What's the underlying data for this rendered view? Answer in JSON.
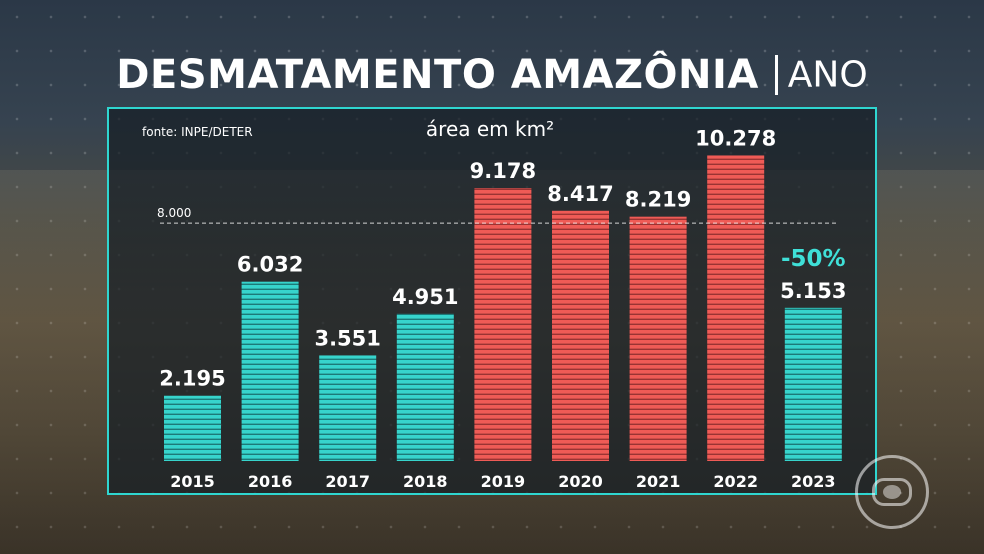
{
  "title": {
    "main": "DESMATAMENTO AMAZÔNIA",
    "sub": "ANO"
  },
  "source_note": "fonte: INPE/DETER",
  "unit_label": "área em km²",
  "brand_logo": "globo-logo",
  "colors": {
    "teal": "#37d4cc",
    "red": "#ef5b56",
    "frame": "#2fd6d0",
    "highlight_text": "#3fe0d8",
    "text": "#ffffff"
  },
  "chart_data": {
    "type": "bar",
    "categories": [
      "2015",
      "2016",
      "2017",
      "2018",
      "2019",
      "2020",
      "2021",
      "2022",
      "2023"
    ],
    "values": [
      2195,
      6032,
      3551,
      4951,
      9178,
      8417,
      8219,
      10278,
      5153
    ],
    "value_labels": [
      "2.195",
      "6.032",
      "3.551",
      "4.951",
      "9.178",
      "8.417",
      "8.219",
      "10.278",
      "5.153"
    ],
    "bar_colors": [
      "teal",
      "teal",
      "teal",
      "teal",
      "red",
      "red",
      "red",
      "red",
      "teal"
    ],
    "ylim": [
      0,
      11000
    ],
    "grid": false,
    "reference_line": {
      "value": 8000,
      "label": "8.000"
    },
    "annotations": [
      {
        "category": "2023",
        "text": "-50%"
      }
    ]
  }
}
